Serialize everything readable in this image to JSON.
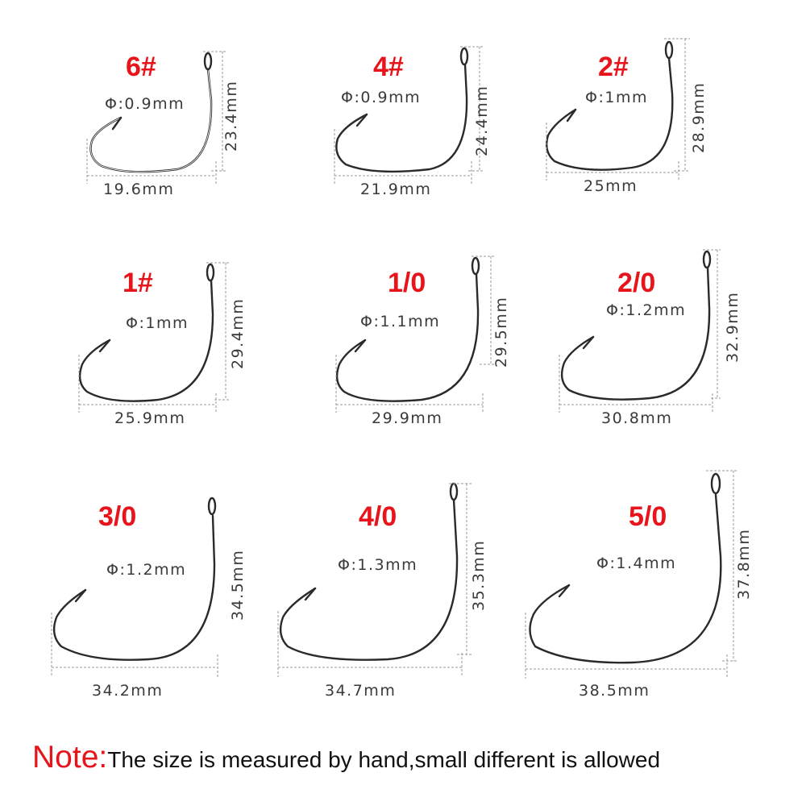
{
  "hooks": [
    {
      "size": "6#",
      "diameter": "Φ:0.9mm",
      "width": "19.6mm",
      "length": "23.4mm"
    },
    {
      "size": "4#",
      "diameter": "Φ:0.9mm",
      "width": "21.9mm",
      "length": "24.4mm"
    },
    {
      "size": "2#",
      "diameter": "Φ:1mm",
      "width": "25mm",
      "length": "28.9mm"
    },
    {
      "size": "1#",
      "diameter": "Φ:1mm",
      "width": "25.9mm",
      "length": "29.4mm"
    },
    {
      "size": "1/0",
      "diameter": "Φ:1.1mm",
      "width": "29.9mm",
      "length": "29.5mm"
    },
    {
      "size": "2/0",
      "diameter": "Φ:1.2mm",
      "width": "30.8mm",
      "length": "32.9mm"
    },
    {
      "size": "3/0",
      "diameter": "Φ:1.2mm",
      "width": "34.2mm",
      "length": "34.5mm"
    },
    {
      "size": "4/0",
      "diameter": "Φ:1.3mm",
      "width": "34.7mm",
      "length": "35.3mm"
    },
    {
      "size": "5/0",
      "diameter": "Φ:1.4mm",
      "width": "38.5mm",
      "length": "37.8mm"
    }
  ],
  "note": {
    "label": "Note:",
    "text": "The size is measured by hand,small different is allowed"
  },
  "colors": {
    "accent": "#e8141b",
    "hook_wire": "#2a2a2a",
    "dimension_line": "#9a9a9a",
    "text": "#3a3a3a"
  }
}
